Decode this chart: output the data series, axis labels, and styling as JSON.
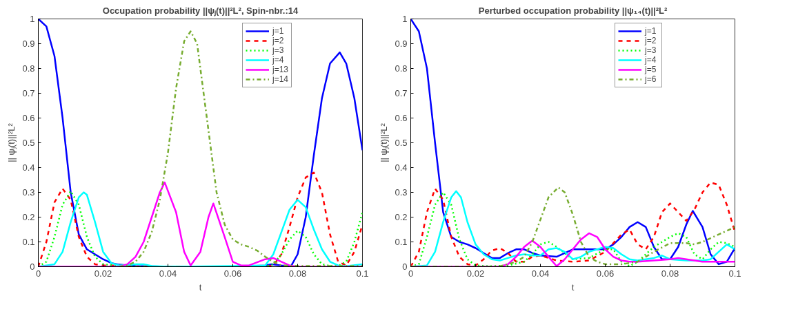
{
  "chart_data": [
    {
      "type": "line",
      "title": "Occupation probability ||ψⱼ(t)||²L², Spin-nbr.:14",
      "xlabel": "t",
      "ylabel": "|| ψⱼ(t)||²L²",
      "xlim": [
        0,
        0.1
      ],
      "ylim": [
        0,
        1
      ],
      "xticks": [
        0,
        0.02,
        0.04,
        0.06,
        0.08,
        0.1
      ],
      "yticks": [
        0,
        0.1,
        0.2,
        0.3,
        0.4,
        0.5,
        0.6,
        0.7,
        0.8,
        0.9,
        1
      ],
      "grid": false,
      "legend": "top right",
      "series": [
        {
          "name": "j=1",
          "color": "#0000ff",
          "line_style": "solid",
          "x": [
            0,
            0.0025,
            0.005,
            0.0075,
            0.01,
            0.0125,
            0.015,
            0.0175,
            0.02,
            0.0225,
            0.025,
            0.03,
            0.04,
            0.05,
            0.06,
            0.07,
            0.072,
            0.075,
            0.078,
            0.08,
            0.0825,
            0.085,
            0.0875,
            0.09,
            0.093,
            0.095,
            0.0975,
            0.1
          ],
          "values": [
            1,
            0.97,
            0.85,
            0.6,
            0.3,
            0.13,
            0.07,
            0.05,
            0.03,
            0.015,
            0.008,
            0.003,
            0,
            0,
            0,
            0.005,
            0.01,
            0.005,
            0.003,
            0.05,
            0.2,
            0.45,
            0.68,
            0.82,
            0.865,
            0.82,
            0.68,
            0.47
          ]
        },
        {
          "name": "j=2",
          "color": "#ff0000",
          "line_style": "dashed",
          "x": [
            0,
            0.0025,
            0.005,
            0.0075,
            0.01,
            0.0125,
            0.015,
            0.0175,
            0.02,
            0.025,
            0.03,
            0.07,
            0.0725,
            0.075,
            0.0775,
            0.08,
            0.0825,
            0.085,
            0.0875,
            0.09,
            0.0925,
            0.095,
            0.0975,
            0.1
          ],
          "values": [
            0,
            0.1,
            0.26,
            0.315,
            0.27,
            0.12,
            0.04,
            0.01,
            0.005,
            0.005,
            0,
            0,
            0.005,
            0.05,
            0.16,
            0.28,
            0.36,
            0.38,
            0.3,
            0.13,
            0.02,
            0.005,
            0.06,
            0.17
          ]
        },
        {
          "name": "j=3",
          "color": "#00ff00",
          "line_style": "dotted",
          "x": [
            0,
            0.0025,
            0.005,
            0.0075,
            0.01,
            0.0125,
            0.015,
            0.0175,
            0.02,
            0.025,
            0.03,
            0.07,
            0.0725,
            0.075,
            0.0775,
            0.08,
            0.0825,
            0.085,
            0.0875,
            0.09,
            0.0925,
            0.095,
            0.0975,
            0.1
          ],
          "values": [
            0,
            0.02,
            0.12,
            0.25,
            0.305,
            0.25,
            0.12,
            0.04,
            0.01,
            0.003,
            0,
            0,
            0.01,
            0.05,
            0.11,
            0.145,
            0.12,
            0.05,
            0.01,
            0.003,
            0.003,
            0.02,
            0.1,
            0.22
          ]
        },
        {
          "name": "j=4",
          "color": "#00ffff",
          "line_style": "solid",
          "x": [
            0,
            0.005,
            0.0075,
            0.01,
            0.0125,
            0.014,
            0.015,
            0.0175,
            0.02,
            0.0225,
            0.025,
            0.03,
            0.0325,
            0.035,
            0.04,
            0.06,
            0.07,
            0.0725,
            0.075,
            0.0775,
            0.08,
            0.0825,
            0.085,
            0.0875,
            0.09,
            0.0925,
            0.095,
            0.1
          ],
          "values": [
            0,
            0.01,
            0.06,
            0.18,
            0.28,
            0.3,
            0.29,
            0.18,
            0.06,
            0.015,
            0.005,
            0.01,
            0.01,
            0.003,
            0,
            0.003,
            0.005,
            0.05,
            0.14,
            0.23,
            0.27,
            0.24,
            0.15,
            0.07,
            0.02,
            0.005,
            0.002,
            0.01
          ]
        },
        {
          "name": "j=13",
          "color": "#ff00ff",
          "line_style": "solid",
          "x": [
            0,
            0.025,
            0.0275,
            0.03,
            0.0325,
            0.035,
            0.0375,
            0.039,
            0.0425,
            0.045,
            0.047,
            0.05,
            0.0525,
            0.054,
            0.0575,
            0.06,
            0.0625,
            0.065,
            0.07,
            0.0725,
            0.075,
            0.0775,
            0.08,
            0.1
          ],
          "values": [
            0,
            0,
            0.01,
            0.04,
            0.1,
            0.2,
            0.3,
            0.34,
            0.22,
            0.06,
            0.005,
            0.06,
            0.2,
            0.255,
            0.12,
            0.02,
            0.005,
            0.005,
            0.03,
            0.035,
            0.02,
            0.005,
            0,
            0
          ]
        },
        {
          "name": "j=14",
          "color": "#77ac30",
          "line_style": "dashdot",
          "x": [
            0.025,
            0.0275,
            0.03,
            0.0325,
            0.035,
            0.0375,
            0.04,
            0.0425,
            0.045,
            0.047,
            0.049,
            0.0525,
            0.055,
            0.0575,
            0.06,
            0.0625,
            0.065,
            0.0675,
            0.07,
            0.0725,
            0.075,
            0.08,
            0.1
          ],
          "values": [
            0,
            0.005,
            0.02,
            0.06,
            0.14,
            0.27,
            0.46,
            0.72,
            0.91,
            0.95,
            0.9,
            0.55,
            0.3,
            0.17,
            0.11,
            0.09,
            0.08,
            0.065,
            0.04,
            0.02,
            0.005,
            0.003,
            0.003
          ]
        }
      ]
    },
    {
      "type": "line",
      "title": "Perturbed occupation probability ||ψ₁₄(t)||²L²",
      "xlabel": "t",
      "ylabel": "|| ψⱼ(t)||²L²",
      "xlim": [
        0,
        0.1
      ],
      "ylim": [
        0,
        1
      ],
      "xticks": [
        0,
        0.02,
        0.04,
        0.06,
        0.08,
        0.1
      ],
      "yticks": [
        0,
        0.1,
        0.2,
        0.3,
        0.4,
        0.5,
        0.6,
        0.7,
        0.8,
        0.9,
        1
      ],
      "grid": false,
      "legend": "top right",
      "series": [
        {
          "name": "j=1",
          "color": "#0000ff",
          "line_style": "solid",
          "x": [
            0,
            0.0025,
            0.005,
            0.0075,
            0.01,
            0.0125,
            0.015,
            0.0175,
            0.02,
            0.0225,
            0.025,
            0.0275,
            0.03,
            0.0325,
            0.035,
            0.0375,
            0.04,
            0.045,
            0.05,
            0.055,
            0.06,
            0.0625,
            0.065,
            0.0675,
            0.07,
            0.0725,
            0.075,
            0.0775,
            0.08,
            0.0825,
            0.085,
            0.087,
            0.09,
            0.0925,
            0.095,
            0.0975,
            0.1
          ],
          "values": [
            1,
            0.95,
            0.8,
            0.5,
            0.22,
            0.12,
            0.1,
            0.09,
            0.075,
            0.055,
            0.035,
            0.035,
            0.055,
            0.07,
            0.07,
            0.055,
            0.045,
            0.04,
            0.07,
            0.07,
            0.07,
            0.09,
            0.12,
            0.16,
            0.18,
            0.16,
            0.08,
            0.03,
            0.03,
            0.08,
            0.17,
            0.225,
            0.16,
            0.05,
            0.01,
            0.02,
            0.075
          ]
        },
        {
          "name": "j=2",
          "color": "#ff0000",
          "line_style": "dashed",
          "x": [
            0,
            0.0025,
            0.005,
            0.0075,
            0.01,
            0.0125,
            0.015,
            0.0175,
            0.02,
            0.0225,
            0.025,
            0.0275,
            0.03,
            0.0325,
            0.035,
            0.0375,
            0.04,
            0.045,
            0.05,
            0.055,
            0.06,
            0.065,
            0.0675,
            0.07,
            0.0725,
            0.075,
            0.0775,
            0.08,
            0.0825,
            0.085,
            0.0875,
            0.09,
            0.0925,
            0.095,
            0.0975,
            0.1
          ],
          "values": [
            0,
            0.06,
            0.22,
            0.315,
            0.27,
            0.12,
            0.04,
            0.01,
            0.005,
            0.03,
            0.065,
            0.075,
            0.055,
            0.02,
            0.02,
            0.04,
            0.045,
            0.025,
            0.02,
            0.025,
            0.06,
            0.13,
            0.15,
            0.09,
            0.07,
            0.12,
            0.22,
            0.255,
            0.22,
            0.185,
            0.23,
            0.3,
            0.34,
            0.33,
            0.25,
            0.14
          ]
        },
        {
          "name": "j=3",
          "color": "#00ff00",
          "line_style": "dotted",
          "x": [
            0,
            0.0025,
            0.005,
            0.0075,
            0.01,
            0.0125,
            0.015,
            0.0175,
            0.02,
            0.025,
            0.03,
            0.035,
            0.0375,
            0.04,
            0.0425,
            0.045,
            0.05,
            0.055,
            0.06,
            0.0625,
            0.065,
            0.0675,
            0.07,
            0.075,
            0.08,
            0.0825,
            0.085,
            0.0875,
            0.09,
            0.0925,
            0.095,
            0.0975,
            0.1
          ],
          "values": [
            0,
            0.01,
            0.12,
            0.25,
            0.3,
            0.25,
            0.11,
            0.03,
            0.005,
            0.002,
            0.005,
            0.02,
            0.05,
            0.09,
            0.1,
            0.08,
            0.03,
            0.035,
            0.07,
            0.07,
            0.02,
            0.002,
            0.02,
            0.08,
            0.12,
            0.135,
            0.12,
            0.05,
            0.03,
            0.07,
            0.1,
            0.095,
            0.08
          ]
        },
        {
          "name": "j=4",
          "color": "#00ffff",
          "line_style": "solid",
          "x": [
            0,
            0.005,
            0.0075,
            0.01,
            0.0125,
            0.014,
            0.0155,
            0.0175,
            0.02,
            0.0225,
            0.025,
            0.0275,
            0.03,
            0.0325,
            0.035,
            0.0375,
            0.04,
            0.0425,
            0.045,
            0.0475,
            0.05,
            0.0525,
            0.055,
            0.06,
            0.0625,
            0.065,
            0.0675,
            0.07,
            0.075,
            0.0775,
            0.08,
            0.085,
            0.09,
            0.0925,
            0.095,
            0.0975,
            0.1
          ],
          "values": [
            0,
            0.005,
            0.06,
            0.18,
            0.28,
            0.305,
            0.28,
            0.18,
            0.09,
            0.05,
            0.03,
            0.025,
            0.035,
            0.045,
            0.05,
            0.045,
            0.045,
            0.07,
            0.075,
            0.06,
            0.03,
            0.04,
            0.06,
            0.08,
            0.075,
            0.05,
            0.03,
            0.025,
            0.035,
            0.045,
            0.03,
            0.025,
            0.025,
            0.03,
            0.06,
            0.09,
            0.07
          ]
        },
        {
          "name": "j=5",
          "color": "#ff00ff",
          "line_style": "solid",
          "x": [
            0,
            0.0275,
            0.03,
            0.0325,
            0.035,
            0.0375,
            0.04,
            0.0425,
            0.045,
            0.0475,
            0.05,
            0.0525,
            0.055,
            0.0575,
            0.06,
            0.0625,
            0.065,
            0.0675,
            0.07,
            0.075,
            0.08,
            0.0825,
            0.085,
            0.0875,
            0.09,
            0.095,
            0.1
          ],
          "values": [
            0,
            0,
            0.01,
            0.04,
            0.08,
            0.105,
            0.08,
            0.04,
            0.002,
            0.03,
            0.07,
            0.11,
            0.135,
            0.12,
            0.07,
            0.04,
            0.025,
            0.02,
            0.02,
            0.025,
            0.03,
            0.035,
            0.03,
            0.025,
            0.02,
            0.02,
            0.02
          ]
        },
        {
          "name": "j=6",
          "color": "#77ac30",
          "line_style": "dashdot",
          "x": [
            0,
            0.025,
            0.0275,
            0.03,
            0.0325,
            0.035,
            0.0375,
            0.04,
            0.0425,
            0.0455,
            0.0475,
            0.05,
            0.0525,
            0.055,
            0.0575,
            0.06,
            0.065,
            0.07,
            0.075,
            0.08,
            0.085,
            0.0875,
            0.09,
            0.095,
            0.1
          ],
          "values": [
            0,
            0,
            0.002,
            0.01,
            0.02,
            0.04,
            0.1,
            0.19,
            0.28,
            0.32,
            0.3,
            0.21,
            0.1,
            0.04,
            0.02,
            0.01,
            0.01,
            0.02,
            0.06,
            0.095,
            0.095,
            0.09,
            0.1,
            0.13,
            0.16
          ]
        }
      ]
    }
  ]
}
